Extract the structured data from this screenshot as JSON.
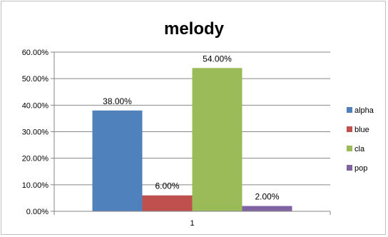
{
  "chart_data": {
    "type": "bar",
    "title": "melody",
    "categories": [
      "1"
    ],
    "series": [
      {
        "name": "alpha",
        "values": [
          0.38
        ],
        "label": "38.00%",
        "color": "#4F81BD"
      },
      {
        "name": "blue",
        "values": [
          0.06
        ],
        "label": "6.00%",
        "color": "#C0504D"
      },
      {
        "name": "cla",
        "values": [
          0.54
        ],
        "label": "54.00%",
        "color": "#9BBB59"
      },
      {
        "name": "pop",
        "values": [
          0.02
        ],
        "label": "2.00%",
        "color": "#8064A2"
      }
    ],
    "ylim": [
      0,
      0.6
    ],
    "yticks": [
      "0.00%",
      "10.00%",
      "20.00%",
      "30.00%",
      "40.00%",
      "50.00%",
      "60.00%"
    ],
    "grid": true,
    "legend": "right"
  }
}
